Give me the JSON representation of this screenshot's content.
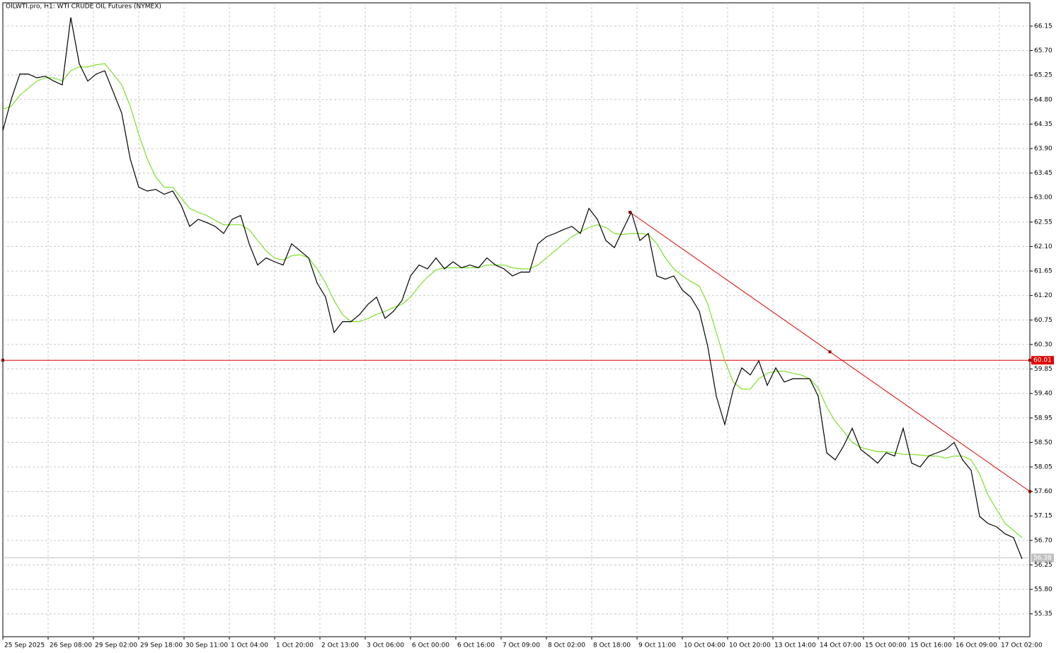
{
  "chart_data": {
    "type": "line",
    "title": "OILWTI.pro, H1:  WTI CRUDE OIL Futures (NYMEX)",
    "xlim": [
      0,
      362.75
    ],
    "ylim": [
      54.93,
      66.63
    ],
    "grid": true,
    "xticks": [
      {
        "value": 0,
        "label": "25 Sep 2025"
      },
      {
        "value": 16,
        "label": "26 Sep 08:00"
      },
      {
        "value": 32,
        "label": "29 Sep 02:00"
      },
      {
        "value": 48,
        "label": "29 Sep 18:00"
      },
      {
        "value": 64,
        "label": "30 Sep 11:00"
      },
      {
        "value": 80,
        "label": "1 Oct 04:00"
      },
      {
        "value": 96,
        "label": "1 Oct 20:00"
      },
      {
        "value": 112,
        "label": "2 Oct 13:00"
      },
      {
        "value": 128,
        "label": "3 Oct 06:00"
      },
      {
        "value": 144,
        "label": "6 Oct 00:00"
      },
      {
        "value": 160,
        "label": "6 Oct 16:00"
      },
      {
        "value": 176,
        "label": "7 Oct 09:00"
      },
      {
        "value": 192,
        "label": "8 Oct 02:00"
      },
      {
        "value": 208,
        "label": "8 Oct 18:00"
      },
      {
        "value": 224,
        "label": "9 Oct 11:00"
      },
      {
        "value": 240,
        "label": "10 Oct 04:00"
      },
      {
        "value": 256,
        "label": "10 Oct 20:00"
      },
      {
        "value": 272,
        "label": "13 Oct 14:00"
      },
      {
        "value": 288,
        "label": "14 Oct 07:00"
      },
      {
        "value": 304,
        "label": "15 Oct 00:00"
      },
      {
        "value": 320,
        "label": "15 Oct 16:00"
      },
      {
        "value": 336,
        "label": "16 Oct 09:00"
      },
      {
        "value": 352,
        "label": "17 Oct 02:00"
      }
    ],
    "yticks": [
      55.35,
      {
        "value": 55.8,
        "label": "55.80"
      },
      56.25,
      {
        "value": 56.7,
        "label": "56.70"
      },
      57.15,
      {
        "value": 57.6,
        "label": "57.60"
      },
      58.05,
      {
        "value": 58.5,
        "label": "58.50"
      },
      58.95,
      {
        "value": 59.4,
        "label": "59.40"
      },
      59.85,
      {
        "value": 60.3,
        "label": "60.30"
      },
      60.75,
      {
        "value": 61.2,
        "label": "61.20"
      },
      61.65,
      {
        "value": 62.1,
        "label": "62.10"
      },
      62.55,
      {
        "value": 63,
        "label": "63.00"
      },
      63.45,
      {
        "value": 63.9,
        "label": "63.90"
      },
      64.35,
      {
        "value": 64.8,
        "label": "64.80"
      },
      65.25,
      {
        "value": 65.7,
        "label": "65.70"
      },
      66.15
    ],
    "x": [
      0,
      3,
      6,
      9,
      12,
      15,
      18,
      21,
      24,
      27,
      30,
      33,
      36,
      39,
      42,
      45,
      48,
      51,
      54,
      57,
      60,
      63,
      66,
      69,
      72,
      75,
      78,
      81,
      84,
      87,
      90,
      93,
      96,
      99,
      102,
      105,
      108,
      111,
      114,
      117,
      120,
      123,
      126,
      129,
      132,
      135,
      138,
      141,
      144,
      147,
      150,
      153,
      156,
      159,
      162,
      165,
      168,
      171,
      174,
      177,
      180,
      183,
      186,
      189,
      192,
      195,
      198,
      201,
      204,
      207,
      210,
      213,
      216,
      219,
      222,
      225,
      228,
      231,
      234,
      237,
      240,
      243,
      246,
      249,
      252,
      255,
      258,
      261,
      264,
      267,
      270,
      273,
      276,
      279,
      282,
      285,
      288,
      291,
      294,
      297,
      300,
      303,
      306,
      309,
      312,
      315,
      318,
      321,
      324,
      327,
      330,
      333,
      336,
      339,
      342,
      345,
      348,
      351,
      354,
      357,
      360
    ],
    "series": [
      {
        "color": "#000000",
        "values": [
          64.23,
          64.81,
          65.27,
          65.27,
          65.2,
          65.23,
          65.14,
          65.07,
          66.31,
          65.46,
          65.14,
          65.27,
          65.33,
          64.94,
          64.55,
          63.71,
          63.19,
          63.12,
          63.15,
          63.06,
          63.12,
          62.86,
          62.47,
          62.6,
          62.54,
          62.47,
          62.34,
          62.6,
          62.67,
          62.15,
          61.76,
          61.89,
          61.82,
          61.76,
          62.15,
          62.02,
          61.89,
          61.43,
          61.17,
          60.52,
          60.72,
          60.72,
          60.85,
          61.04,
          61.17,
          60.78,
          60.91,
          61.11,
          61.56,
          61.76,
          61.69,
          61.89,
          61.69,
          61.82,
          61.71,
          61.76,
          61.71,
          61.89,
          61.76,
          61.69,
          61.56,
          61.63,
          61.63,
          62.15,
          62.28,
          62.34,
          62.41,
          62.47,
          62.34,
          62.8,
          62.6,
          62.21,
          62.08,
          62.41,
          62.73,
          62.21,
          62.34,
          61.56,
          61.5,
          61.56,
          61.3,
          61.17,
          60.91,
          60.26,
          59.35,
          58.83,
          59.48,
          59.87,
          59.74,
          60.0,
          59.55,
          59.87,
          59.61,
          59.67,
          59.67,
          59.67,
          59.35,
          58.31,
          58.18,
          58.44,
          58.76,
          58.37,
          58.25,
          58.12,
          58.31,
          58.25,
          58.76,
          58.12,
          58.05,
          58.25,
          58.31,
          58.37,
          58.5,
          58.18,
          57.99,
          57.14,
          57.01,
          56.95,
          56.82,
          56.75,
          56.36
        ]
      },
      {
        "color": "#7ee02a",
        "values": [
          64.62,
          64.68,
          64.88,
          65.01,
          65.14,
          65.2,
          65.2,
          65.14,
          65.33,
          65.4,
          65.4,
          65.44,
          65.46,
          65.27,
          65.07,
          64.68,
          64.16,
          63.71,
          63.38,
          63.19,
          63.19,
          62.99,
          62.8,
          62.73,
          62.67,
          62.58,
          62.5,
          62.5,
          62.5,
          62.41,
          62.21,
          62.02,
          61.89,
          61.85,
          61.93,
          61.95,
          61.89,
          61.69,
          61.43,
          61.11,
          60.85,
          60.72,
          60.72,
          60.78,
          60.85,
          60.91,
          60.98,
          61.04,
          61.17,
          61.37,
          61.54,
          61.67,
          61.71,
          61.71,
          61.71,
          61.71,
          61.71,
          61.76,
          61.76,
          61.76,
          61.71,
          61.69,
          61.69,
          61.76,
          61.89,
          62.02,
          62.15,
          62.28,
          62.37,
          62.45,
          62.5,
          62.45,
          62.34,
          62.32,
          62.34,
          62.34,
          62.32,
          62.15,
          61.89,
          61.69,
          61.56,
          61.46,
          61.37,
          61.04,
          60.52,
          60.0,
          59.61,
          59.48,
          59.48,
          59.67,
          59.77,
          59.81,
          59.81,
          59.77,
          59.74,
          59.67,
          59.5,
          59.15,
          58.89,
          58.7,
          58.5,
          58.41,
          58.37,
          58.33,
          58.33,
          58.31,
          58.28,
          58.28,
          58.27,
          58.25,
          58.25,
          58.21,
          58.25,
          58.25,
          58.18,
          57.92,
          57.53,
          57.27,
          57.01,
          56.88,
          56.75
        ]
      }
    ],
    "horizontal_line": {
      "value": 60.01,
      "color": "#e00000"
    },
    "trend_line": {
      "x": [
        221.5,
        362.75
      ],
      "values": [
        62.73,
        57.6
      ],
      "color": "#e00000"
    },
    "current_price": {
      "value": 56.38,
      "color": "#c0c0c0"
    }
  }
}
